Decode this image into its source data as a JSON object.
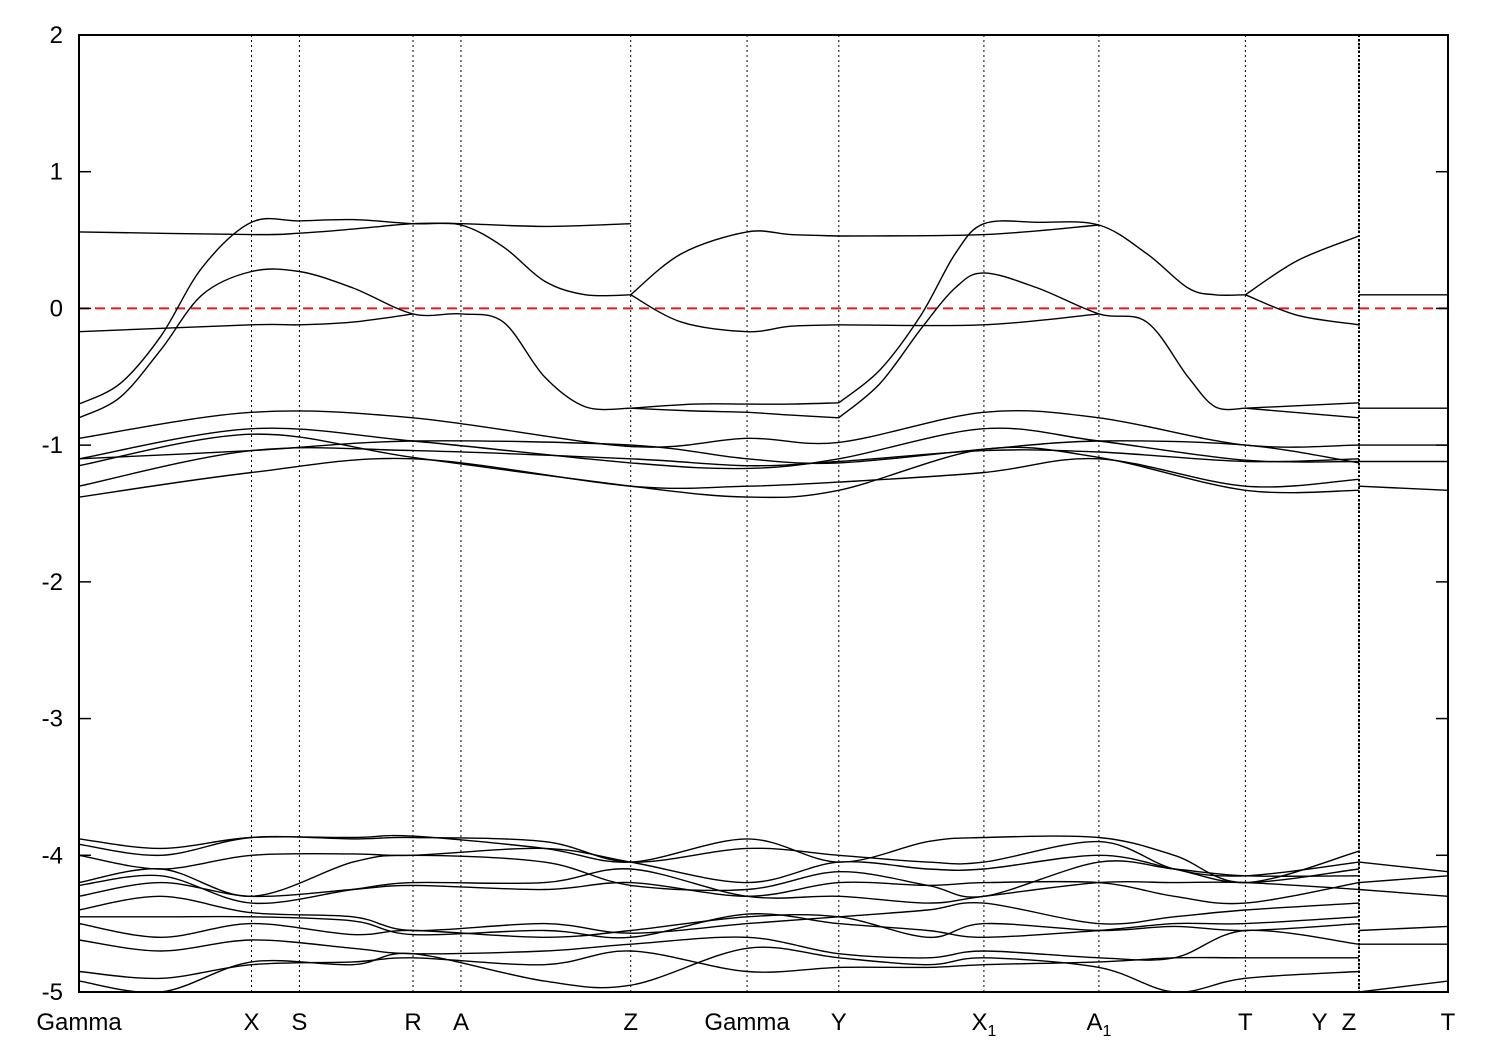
{
  "chart_data": {
    "type": "line",
    "title": "",
    "xlabel": "",
    "ylabel": "",
    "ylim": [
      -5,
      2
    ],
    "yticks": [
      2,
      1,
      0,
      -1,
      -2,
      -3,
      -4,
      -5
    ],
    "ytick_labels": [
      "2",
      "1",
      "0",
      "-1",
      "-2",
      "-3",
      "-4",
      "-5"
    ],
    "grid": "vertical dotted lines at high-symmetry points",
    "kpoints": [
      {
        "label": "Gamma",
        "sub": "",
        "pos": 0.0
      },
      {
        "label": "X",
        "sub": "",
        "pos": 0.126
      },
      {
        "label": "S",
        "sub": "",
        "pos": 0.161
      },
      {
        "label": "R",
        "sub": "",
        "pos": 0.244
      },
      {
        "label": "A",
        "sub": "",
        "pos": 0.279
      },
      {
        "label": "Z",
        "sub": "",
        "pos": 0.403
      },
      {
        "label": "Gamma",
        "sub": "",
        "pos": 0.488
      },
      {
        "label": "Y",
        "sub": "",
        "pos": 0.555
      },
      {
        "label": "X",
        "sub": "1",
        "pos": 0.661
      },
      {
        "label": "A",
        "sub": "1",
        "pos": 0.745
      },
      {
        "label": "T",
        "sub": "",
        "pos": 0.852
      },
      {
        "label": "Y|Z",
        "sub": "",
        "pos": 0.935
      },
      {
        "label": "T",
        "sub": "",
        "pos": 1.0
      }
    ],
    "fermi_level": {
      "y": 0,
      "color": "#e31a1c",
      "style": "dashed"
    },
    "line_color": "#000000",
    "series": [
      {
        "x": [
          0,
          0.03,
          0.06,
          0.09,
          0.126,
          0.161,
          0.2,
          0.244,
          0.279,
          0.31,
          0.34,
          0.37,
          0.403
        ],
        "y": [
          -0.7,
          -0.55,
          -0.2,
          0.3,
          0.63,
          0.64,
          0.65,
          0.62,
          0.61,
          0.45,
          0.2,
          0.1,
          0.1
        ]
      },
      {
        "x": [
          0,
          0.03,
          0.06,
          0.09,
          0.126,
          0.161,
          0.2,
          0.244,
          0.279,
          0.31,
          0.34,
          0.37,
          0.403
        ],
        "y": [
          -0.8,
          -0.65,
          -0.3,
          0.1,
          0.27,
          0.27,
          0.15,
          -0.04,
          -0.04,
          -0.1,
          -0.5,
          -0.72,
          -0.73
        ]
      },
      {
        "x": [
          0,
          0.126,
          0.161,
          0.2,
          0.244,
          0.279,
          0.34,
          0.403
        ],
        "y": [
          0.56,
          0.54,
          0.55,
          0.58,
          0.62,
          0.62,
          0.6,
          0.62
        ]
      },
      {
        "x": [
          0,
          0.126,
          0.161,
          0.2,
          0.244
        ],
        "y": [
          -0.17,
          -0.12,
          -0.12,
          -0.1,
          -0.04
        ]
      },
      {
        "x": [
          0.403,
          0.44,
          0.488,
          0.52,
          0.555
        ],
        "y": [
          0.1,
          0.4,
          0.56,
          0.54,
          0.53
        ]
      },
      {
        "x": [
          0.403,
          0.44,
          0.488,
          0.52,
          0.555
        ],
        "y": [
          0.1,
          -0.1,
          -0.17,
          -0.13,
          -0.12
        ]
      },
      {
        "x": [
          0.403,
          0.45,
          0.488,
          0.52,
          0.555
        ],
        "y": [
          -0.73,
          -0.7,
          -0.7,
          -0.7,
          -0.69
        ]
      },
      {
        "x": [
          0.403,
          0.45,
          0.488,
          0.52,
          0.555
        ],
        "y": [
          -0.73,
          -0.75,
          -0.76,
          -0.78,
          -0.8
        ]
      },
      {
        "x": [
          0.555,
          0.585,
          0.615,
          0.64,
          0.661,
          0.7,
          0.745,
          0.78,
          0.81,
          0.83,
          0.852
        ],
        "y": [
          -0.69,
          -0.45,
          -0.05,
          0.4,
          0.62,
          0.63,
          0.61,
          0.4,
          0.15,
          0.1,
          0.1
        ]
      },
      {
        "x": [
          0.555,
          0.585,
          0.615,
          0.64,
          0.661,
          0.7,
          0.745,
          0.78,
          0.81,
          0.83,
          0.852
        ],
        "y": [
          -0.8,
          -0.55,
          -0.15,
          0.15,
          0.26,
          0.15,
          -0.04,
          -0.1,
          -0.5,
          -0.72,
          -0.73
        ]
      },
      {
        "x": [
          0.555,
          0.661,
          0.745
        ],
        "y": [
          0.53,
          0.54,
          0.61
        ]
      },
      {
        "x": [
          0.555,
          0.661,
          0.745
        ],
        "y": [
          -0.12,
          -0.12,
          -0.04
        ]
      },
      {
        "x": [
          0.852,
          0.89,
          0.935
        ],
        "y": [
          0.1,
          0.35,
          0.53
        ]
      },
      {
        "x": [
          0.852,
          0.89,
          0.935
        ],
        "y": [
          0.1,
          -0.05,
          -0.12
        ]
      },
      {
        "x": [
          0.852,
          0.935
        ],
        "y": [
          -0.73,
          -0.69
        ]
      },
      {
        "x": [
          0.852,
          0.935
        ],
        "y": [
          -0.73,
          -0.8
        ]
      },
      {
        "x": [
          0.935,
          1.0
        ],
        "y": [
          0.1,
          0.1
        ]
      },
      {
        "x": [
          0.935,
          1.0
        ],
        "y": [
          -0.73,
          -0.73
        ]
      },
      {
        "x": [
          0,
          0.126,
          0.244,
          0.403,
          0.488,
          0.555,
          0.661,
          0.745,
          0.852,
          0.935
        ],
        "y": [
          -0.95,
          -0.76,
          -0.8,
          -1.01,
          -0.95,
          -0.98,
          -0.76,
          -0.8,
          -1.0,
          -1.0
        ]
      },
      {
        "x": [
          0,
          0.126,
          0.244,
          0.403,
          0.488,
          0.555,
          0.661,
          0.745,
          0.852,
          0.935
        ],
        "y": [
          -1.1,
          -0.88,
          -0.97,
          -1.13,
          -1.17,
          -1.1,
          -0.88,
          -0.97,
          -1.11,
          -1.12
        ]
      },
      {
        "x": [
          0,
          0.126,
          0.244,
          0.403,
          0.488,
          0.555,
          0.661,
          0.745,
          0.852,
          0.935
        ],
        "y": [
          -1.15,
          -0.92,
          -1.09,
          -1.3,
          -1.38,
          -1.33,
          -1.03,
          -1.09,
          -1.33,
          -1.33
        ]
      },
      {
        "x": [
          0,
          0.126,
          0.244,
          0.403,
          0.488,
          0.555,
          0.661,
          0.745,
          0.852,
          0.935
        ],
        "y": [
          -1.3,
          -1.04,
          -1.04,
          -1.1,
          -1.15,
          -1.12,
          -1.04,
          -1.05,
          -1.12,
          -1.1
        ]
      },
      {
        "x": [
          0,
          0.126,
          0.244,
          0.403,
          0.488,
          0.555,
          0.661,
          0.745,
          0.852,
          0.935
        ],
        "y": [
          -1.38,
          -1.2,
          -1.1,
          -1.3,
          -1.3,
          -1.27,
          -1.2,
          -1.1,
          -1.3,
          -1.25
        ]
      },
      {
        "x": [
          0,
          0.126,
          0.244,
          0.403,
          0.488,
          0.555,
          0.661,
          0.745,
          0.852,
          0.935
        ],
        "y": [
          -1.1,
          -1.04,
          -0.97,
          -1.0,
          -1.1,
          -1.13,
          -1.03,
          -0.97,
          -1.0,
          -1.13
        ]
      },
      {
        "x": [
          0.935,
          1.0
        ],
        "y": [
          -1.0,
          -1.0
        ]
      },
      {
        "x": [
          0.935,
          1.0
        ],
        "y": [
          -1.12,
          -1.12
        ]
      },
      {
        "x": [
          0.935,
          1.0
        ],
        "y": [
          -1.3,
          -1.33
        ]
      },
      {
        "x": [
          0,
          0.06,
          0.126,
          0.2,
          0.244,
          0.34,
          0.403,
          0.488,
          0.555,
          0.62,
          0.661,
          0.745,
          0.8,
          0.852,
          0.935
        ],
        "y": [
          -3.88,
          -3.95,
          -3.87,
          -3.87,
          -3.86,
          -3.95,
          -4.05,
          -3.88,
          -4.05,
          -3.9,
          -3.87,
          -3.87,
          -4.0,
          -4.2,
          -3.97
        ]
      },
      {
        "x": [
          0,
          0.06,
          0.126,
          0.2,
          0.244,
          0.34,
          0.403,
          0.488,
          0.555,
          0.62,
          0.661,
          0.745,
          0.8,
          0.852,
          0.935
        ],
        "y": [
          -3.92,
          -4.0,
          -3.87,
          -3.88,
          -3.87,
          -3.9,
          -4.05,
          -3.95,
          -4.0,
          -4.05,
          -4.05,
          -3.9,
          -4.1,
          -4.15,
          -4.05
        ]
      },
      {
        "x": [
          0,
          0.06,
          0.126,
          0.2,
          0.244,
          0.34,
          0.403,
          0.488,
          0.555,
          0.62,
          0.661,
          0.745,
          0.8,
          0.852,
          0.935
        ],
        "y": [
          -4.0,
          -4.1,
          -4.0,
          -3.99,
          -4.0,
          -3.95,
          -4.05,
          -4.2,
          -4.05,
          -4.1,
          -4.1,
          -4.0,
          -4.1,
          -4.2,
          -4.1
        ]
      },
      {
        "x": [
          0,
          0.06,
          0.126,
          0.2,
          0.244,
          0.34,
          0.403,
          0.488,
          0.555,
          0.62,
          0.661,
          0.745,
          0.8,
          0.852,
          0.935
        ],
        "y": [
          -4.2,
          -4.1,
          -4.3,
          -4.05,
          -4.0,
          -4.05,
          -4.22,
          -4.25,
          -4.12,
          -4.22,
          -4.3,
          -4.05,
          -4.1,
          -4.15,
          -4.15
        ]
      },
      {
        "x": [
          0,
          0.06,
          0.126,
          0.2,
          0.244,
          0.34,
          0.403,
          0.488,
          0.555,
          0.62,
          0.661,
          0.745,
          0.8,
          0.852,
          0.935
        ],
        "y": [
          -4.22,
          -4.15,
          -4.35,
          -4.25,
          -4.2,
          -4.2,
          -4.1,
          -4.3,
          -4.3,
          -4.35,
          -4.3,
          -4.2,
          -4.2,
          -4.2,
          -4.25
        ]
      },
      {
        "x": [
          0,
          0.06,
          0.126,
          0.2,
          0.244,
          0.34,
          0.403,
          0.488,
          0.555,
          0.62,
          0.661,
          0.745,
          0.8,
          0.852,
          0.935
        ],
        "y": [
          -4.3,
          -4.2,
          -4.3,
          -4.25,
          -4.22,
          -4.25,
          -4.2,
          -4.3,
          -4.2,
          -4.22,
          -4.2,
          -4.2,
          -4.3,
          -4.35,
          -4.2
        ]
      },
      {
        "x": [
          0,
          0.06,
          0.126,
          0.2,
          0.244,
          0.34,
          0.403,
          0.488,
          0.555,
          0.62,
          0.661,
          0.745,
          0.8,
          0.852,
          0.935
        ],
        "y": [
          -4.4,
          -4.3,
          -4.42,
          -4.45,
          -4.55,
          -4.5,
          -4.57,
          -4.5,
          -4.45,
          -4.4,
          -4.35,
          -4.5,
          -4.45,
          -4.4,
          -4.35
        ]
      },
      {
        "x": [
          0,
          0.06,
          0.126,
          0.2,
          0.244,
          0.34,
          0.403,
          0.488,
          0.555,
          0.62,
          0.661,
          0.745,
          0.8,
          0.852,
          0.935
        ],
        "y": [
          -4.45,
          -4.45,
          -4.45,
          -4.48,
          -4.58,
          -4.55,
          -4.6,
          -4.43,
          -4.5,
          -4.55,
          -4.6,
          -4.55,
          -4.5,
          -4.5,
          -4.45
        ]
      },
      {
        "x": [
          0,
          0.06,
          0.126,
          0.2,
          0.244,
          0.34,
          0.403,
          0.488,
          0.555,
          0.62,
          0.661,
          0.745,
          0.8,
          0.852,
          0.935
        ],
        "y": [
          -4.5,
          -4.6,
          -4.5,
          -4.58,
          -4.55,
          -4.6,
          -4.55,
          -4.45,
          -4.45,
          -4.6,
          -4.5,
          -4.55,
          -4.52,
          -4.55,
          -4.5
        ]
      },
      {
        "x": [
          0,
          0.06,
          0.126,
          0.2,
          0.244,
          0.34,
          0.403,
          0.488,
          0.555,
          0.62,
          0.661,
          0.745,
          0.8,
          0.852,
          0.935
        ],
        "y": [
          -4.62,
          -4.7,
          -4.62,
          -4.68,
          -4.72,
          -4.7,
          -4.65,
          -4.6,
          -4.72,
          -4.75,
          -4.7,
          -4.75,
          -4.75,
          -4.55,
          -4.65
        ]
      },
      {
        "x": [
          0,
          0.06,
          0.126,
          0.2,
          0.244,
          0.34,
          0.403,
          0.488,
          0.555,
          0.62,
          0.661,
          0.745,
          0.8,
          0.852,
          0.935
        ],
        "y": [
          -4.85,
          -4.9,
          -4.8,
          -4.78,
          -4.75,
          -4.8,
          -4.7,
          -4.85,
          -4.82,
          -4.82,
          -4.8,
          -4.78,
          -4.75,
          -4.75,
          -4.75
        ]
      },
      {
        "x": [
          0,
          0.06,
          0.126,
          0.2,
          0.244,
          0.34,
          0.403,
          0.488,
          0.555,
          0.62,
          0.661,
          0.745,
          0.8,
          0.852,
          0.935
        ],
        "y": [
          -4.92,
          -5.0,
          -4.78,
          -4.8,
          -4.72,
          -4.92,
          -4.95,
          -4.68,
          -4.75,
          -4.8,
          -4.75,
          -4.82,
          -5.0,
          -4.9,
          -4.85
        ]
      },
      {
        "x": [
          0.935,
          1.0
        ],
        "y": [
          -4.05,
          -4.12
        ]
      },
      {
        "x": [
          0.935,
          1.0
        ],
        "y": [
          -4.2,
          -4.15
        ]
      },
      {
        "x": [
          0.935,
          1.0
        ],
        "y": [
          -4.25,
          -4.3
        ]
      },
      {
        "x": [
          0.935,
          1.0
        ],
        "y": [
          -4.55,
          -4.52
        ]
      },
      {
        "x": [
          0.935,
          1.0
        ],
        "y": [
          -4.65,
          -4.65
        ]
      },
      {
        "x": [
          0.935,
          1.0
        ],
        "y": [
          -5.0,
          -4.92
        ]
      }
    ]
  }
}
